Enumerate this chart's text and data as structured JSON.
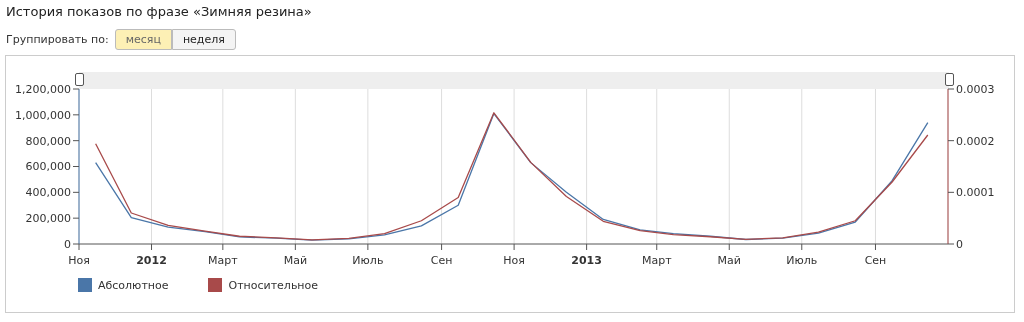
{
  "chart_data": {
    "type": "line",
    "title": "История показов по фразе «Зимняя резина»",
    "annotations": [
      "Группировать по:",
      "месяц",
      "неделя"
    ],
    "x": [
      "2011-11-15",
      "2011-12-15",
      "2012-01-15",
      "2012-02-15",
      "2012-03-15",
      "2012-04-15",
      "2012-05-15",
      "2012-06-15",
      "2012-07-15",
      "2012-08-15",
      "2012-09-15",
      "2012-10-15",
      "2012-11-15",
      "2012-12-15",
      "2013-01-15",
      "2013-02-15",
      "2013-03-15",
      "2013-04-15",
      "2013-05-15",
      "2013-06-15",
      "2013-07-15",
      "2013-08-15",
      "2013-09-15",
      "2013-10-15"
    ],
    "series": [
      {
        "name": "Абсолютное",
        "color": "#4a76a8",
        "values": [
          630000,
          205000,
          130000,
          95000,
          55000,
          45000,
          30000,
          40000,
          70000,
          140000,
          300000,
          1010000,
          630000,
          400000,
          190000,
          110000,
          80000,
          60000,
          35000,
          45000,
          85000,
          170000,
          490000,
          940000
        ]
      },
      {
        "name": "Относительное",
        "color": "#a84a4a",
        "axis": "y2",
        "values": [
          0.000194,
          6e-05,
          3.6e-05,
          2.5e-05,
          1.5e-05,
          1.2e-05,
          8e-06,
          1.1e-05,
          2e-05,
          4.5e-05,
          9e-05,
          0.000254,
          0.000158,
          9.2e-05,
          4.4e-05,
          2.6e-05,
          1.8e-05,
          1.4e-05,
          9e-06,
          1.2e-05,
          2.3e-05,
          4.5e-05,
          0.00012,
          0.000211
        ]
      }
    ],
    "xlim": [
      "2011-11-01",
      "2013-11-01"
    ],
    "xticks": [
      {
        "value": "2011-11-01",
        "label": "Ноя"
      },
      {
        "value": "2012-01-01",
        "label": "2012"
      },
      {
        "value": "2012-03-01",
        "label": "Март"
      },
      {
        "value": "2012-05-01",
        "label": "Май"
      },
      {
        "value": "2012-07-01",
        "label": "Июль"
      },
      {
        "value": "2012-09-01",
        "label": "Сен"
      },
      {
        "value": "2012-11-01",
        "label": "Ноя"
      },
      {
        "value": "2013-01-01",
        "label": "2013"
      },
      {
        "value": "2013-03-01",
        "label": "Март"
      },
      {
        "value": "2013-05-01",
        "label": "Май"
      },
      {
        "value": "2013-07-01",
        "label": "Июль"
      },
      {
        "value": "2013-09-01",
        "label": "Сен"
      }
    ],
    "ylim": [
      0,
      1200000
    ],
    "yticks": [
      {
        "value": 0,
        "label": "0"
      },
      {
        "value": 200000,
        "label": "200,000"
      },
      {
        "value": 400000,
        "label": "400,000"
      },
      {
        "value": 600000,
        "label": "600,000"
      },
      {
        "value": 800000,
        "label": "800,000"
      },
      {
        "value": 1000000,
        "label": "1,000,000"
      },
      {
        "value": 1200000,
        "label": "1,200,000"
      }
    ],
    "y2lim": [
      0,
      0.0003
    ],
    "y2ticks": [
      0,
      0.0001,
      0.0002,
      0.0003
    ],
    "grid": "x",
    "legend": "bottom left",
    "marker": "none",
    "line_style": "solid"
  }
}
